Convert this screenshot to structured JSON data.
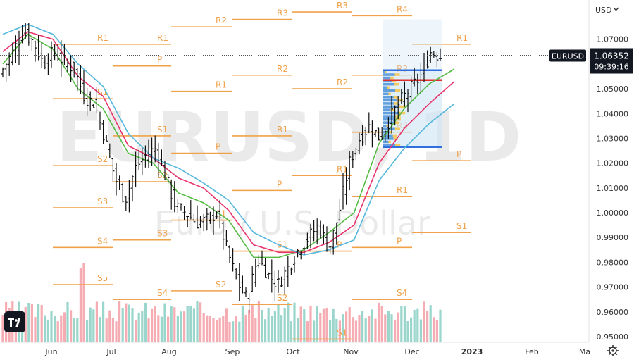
{
  "chart_data": {
    "type": "candlestick",
    "symbol": "EURUSD",
    "timeframe": "1D",
    "watermark": {
      "symbol_text": "EURUSD, 1D",
      "description": "Euro / U.S. Dollar"
    },
    "currency_label": "USD",
    "last_price": "1.06352",
    "countdown": "09:39:16",
    "yaxis_ticks": [
      "1.07000",
      "1.06000",
      "1.05000",
      "1.04000",
      "1.03000",
      "1.02000",
      "1.01000",
      "1.00000",
      "0.99000",
      "0.98000",
      "0.97000",
      "0.96000",
      "0.95000"
    ],
    "ylim": [
      0.948,
      1.083
    ],
    "xaxis_ticks": [
      "Jun",
      "Jul",
      "Aug",
      "Sep",
      "Oct",
      "Nov",
      "Dec",
      "2023",
      "Feb",
      "Ma"
    ],
    "pivot_levels": [
      {
        "label": "R1",
        "value": 1.068
      },
      {
        "label": "S1",
        "value": 1.046
      },
      {
        "label": "S2",
        "value": 1.019
      },
      {
        "label": "S3",
        "value": 1.002
      },
      {
        "label": "S4",
        "value": 0.986
      },
      {
        "label": "S5",
        "value": 0.971
      },
      {
        "label": "R1",
        "value": 1.068
      },
      {
        "label": "P",
        "value": 1.0592
      },
      {
        "label": "S1",
        "value": 1.031
      },
      {
        "label": "S2",
        "value": 1.0125
      },
      {
        "label": "S3",
        "value": 0.989
      },
      {
        "label": "S4",
        "value": 0.965
      },
      {
        "label": "R2",
        "value": 1.075
      },
      {
        "label": "R1",
        "value": 1.049
      },
      {
        "label": "P",
        "value": 1.024
      },
      {
        "label": "S1",
        "value": 0.997
      },
      {
        "label": "S2",
        "value": 0.9685
      },
      {
        "label": "R3",
        "value": 1.078
      },
      {
        "label": "R2",
        "value": 1.0555
      },
      {
        "label": "R1",
        "value": 1.031
      },
      {
        "label": "P",
        "value": 1.009
      },
      {
        "label": "S1",
        "value": 0.9845
      },
      {
        "label": "S2",
        "value": 0.963
      },
      {
        "label": "R3",
        "value": 1.081
      },
      {
        "label": "R2",
        "value": 1.05
      },
      {
        "label": "R1",
        "value": 1.015
      },
      {
        "label": "P",
        "value": 0.9845
      },
      {
        "label": "S1",
        "value": 0.949
      },
      {
        "label": "R4",
        "value": 1.0795
      },
      {
        "label": "R3",
        "value": 1.0555
      },
      {
        "label": "R2",
        "value": 1.0325
      },
      {
        "label": "R1",
        "value": 1.0065
      },
      {
        "label": "P",
        "value": 0.986
      },
      {
        "label": "S4",
        "value": 0.965
      },
      {
        "label": "R1",
        "value": 1.068
      },
      {
        "label": "P",
        "value": 1.021
      },
      {
        "label": "S1",
        "value": 0.992
      }
    ],
    "moving_averages": [
      {
        "color": "#55bb44",
        "values": [
          1.06,
          1.072,
          1.066,
          1.05,
          1.042,
          1.024,
          1.02,
          1.008,
          1.004,
          0.997,
          0.982,
          0.982,
          0.985,
          0.992,
          1.0,
          1.028,
          1.042,
          1.052,
          1.058
        ]
      },
      {
        "color": "#e8336b",
        "values": [
          1.065,
          1.073,
          1.07,
          1.055,
          1.047,
          1.027,
          1.022,
          1.014,
          1.01,
          1.001,
          0.987,
          0.984,
          0.984,
          0.988,
          0.995,
          1.02,
          1.034,
          1.044,
          1.053
        ]
      },
      {
        "color": "#56b7dd",
        "values": [
          1.072,
          1.076,
          1.072,
          1.06,
          1.051,
          1.032,
          1.022,
          1.018,
          1.012,
          1.005,
          0.992,
          0.987,
          0.983,
          0.985,
          0.989,
          1.013,
          1.026,
          1.036,
          1.044
        ]
      }
    ],
    "price_path": [
      1.058,
      1.065,
      1.073,
      1.069,
      1.06,
      1.065,
      1.061,
      1.058,
      1.047,
      1.044,
      1.03,
      1.014,
      1.005,
      1.018,
      1.023,
      1.026,
      1.014,
      1.002,
      1.0,
      0.996,
      0.997,
      1.0,
      0.985,
      0.972,
      0.965,
      0.982,
      0.975,
      0.971,
      0.978,
      0.985,
      0.99,
      0.995,
      0.985,
      1.0,
      1.02,
      1.03,
      1.035,
      1.03,
      1.038,
      1.045,
      1.05,
      1.055,
      1.065,
      1.063
    ],
    "volume_profile": {
      "range": [
        1.0265,
        1.0575
      ],
      "poc": 1.0535
    }
  }
}
